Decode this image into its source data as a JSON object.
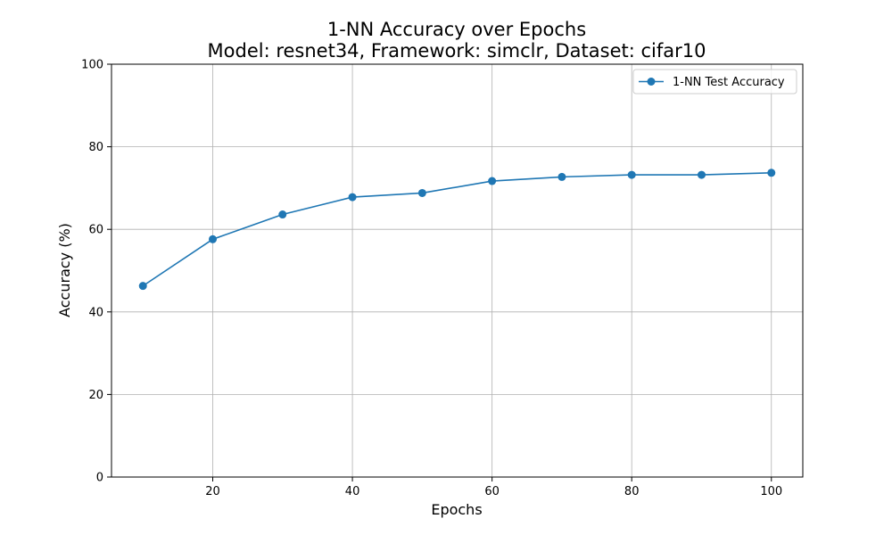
{
  "chart_data": {
    "type": "line",
    "title": "1-NN Accuracy over Epochs",
    "subtitle": "Model: resnet34, Framework: simclr, Dataset: cifar10",
    "xlabel": "Epochs",
    "ylabel": "Accuracy (%)",
    "xlim": [
      5.5,
      104.5
    ],
    "ylim": [
      0,
      100
    ],
    "xticks": [
      20,
      40,
      60,
      80,
      100
    ],
    "yticks": [
      0,
      20,
      40,
      60,
      80,
      100
    ],
    "grid": true,
    "legend_position": "top-right",
    "series": [
      {
        "name": "1-NN Test Accuracy",
        "color": "#1f77b4",
        "marker": "circle",
        "x": [
          10,
          20,
          30,
          40,
          50,
          60,
          70,
          80,
          90,
          100
        ],
        "y": [
          46.3,
          57.6,
          63.6,
          67.8,
          68.8,
          71.7,
          72.7,
          73.2,
          73.2,
          73.7
        ]
      }
    ]
  }
}
